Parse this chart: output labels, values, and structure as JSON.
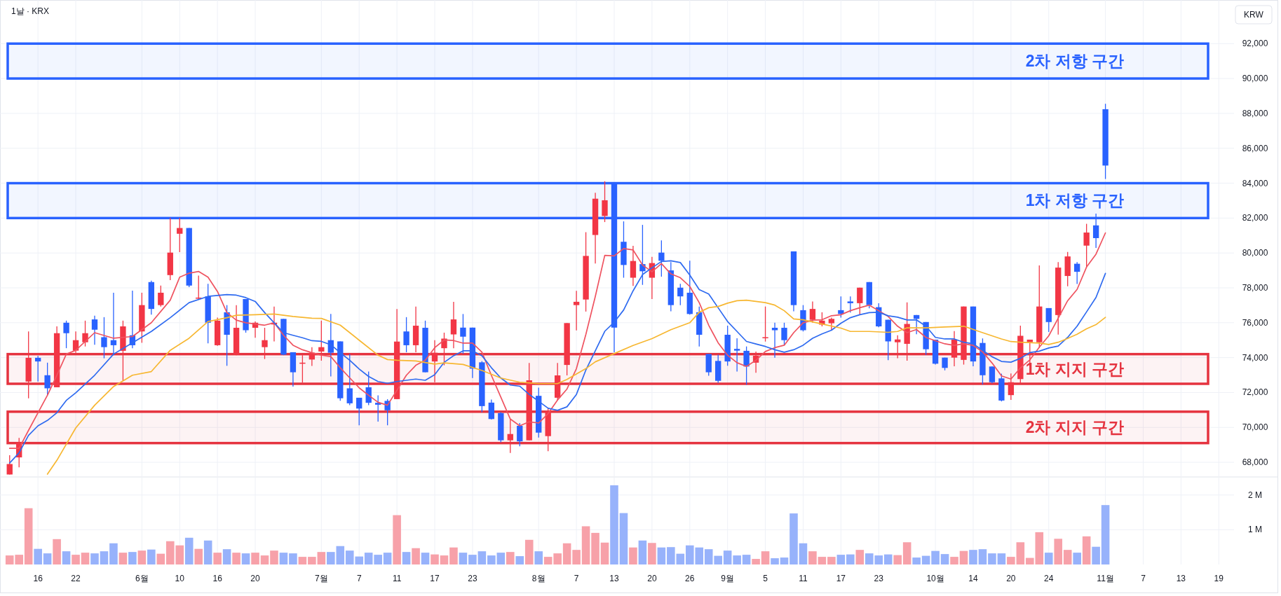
{
  "chart_data": [
    {
      "type": "candlestick",
      "title": "1날 · KRX",
      "ylabel": "KRW",
      "categories": [
        null,
        null,
        null,
        null,
        null,
        null,
        null,
        null,
        null,
        null,
        null,
        null,
        null,
        null,
        null,
        null,
        null,
        null,
        null,
        null,
        null,
        null,
        null,
        null,
        null,
        null,
        null,
        null,
        null,
        null,
        null,
        null,
        null,
        null,
        null,
        null,
        null,
        null,
        null,
        null,
        null,
        null,
        null,
        null,
        null,
        null,
        null,
        null,
        null,
        null,
        null,
        null,
        null,
        null,
        null,
        null,
        null,
        null,
        null,
        null,
        null,
        null,
        null,
        null,
        null,
        null,
        null,
        null,
        null,
        null,
        null,
        null,
        null,
        null,
        null,
        null,
        null,
        null,
        null,
        null,
        null,
        null,
        null,
        null,
        null,
        null,
        null,
        null,
        null,
        null,
        null,
        null,
        null,
        null,
        null,
        null,
        null,
        null,
        null,
        null,
        null,
        null,
        null,
        null,
        null,
        null,
        null,
        null,
        null,
        null,
        null,
        null,
        null,
        null,
        null,
        null,
        null,
        null,
        null,
        null,
        null,
        null,
        null,
        null,
        null,
        null,
        null,
        null,
        null
      ],
      "ohlc": [
        [
          67300,
          68400,
          67300,
          67900
        ],
        [
          68280,
          69400,
          67710,
          69110
        ],
        [
          72630,
          75500,
          71670,
          73990
        ],
        [
          73990,
          74100,
          72630,
          73780
        ],
        [
          72990,
          73710,
          71840,
          72240
        ],
        [
          72300,
          75790,
          72300,
          75400
        ],
        [
          76000,
          76120,
          74540,
          75400
        ],
        [
          74400,
          75500,
          74280,
          75000
        ],
        [
          74880,
          76120,
          74640,
          75400
        ],
        [
          76190,
          76400,
          74740,
          75600
        ],
        [
          75170,
          76320,
          73960,
          74600
        ],
        [
          75000,
          77720,
          74140,
          74710
        ],
        [
          74390,
          76120,
          72660,
          75790
        ],
        [
          75280,
          77840,
          74540,
          74710
        ],
        [
          75500,
          77720,
          74850,
          77010
        ],
        [
          78330,
          78410,
          76460,
          76790
        ],
        [
          77010,
          78130,
          76930,
          77720
        ],
        [
          78730,
          82000,
          78440,
          80020
        ],
        [
          81100,
          82000,
          80050,
          81430
        ],
        [
          81430,
          81430,
          78040,
          78130
        ],
        [
          77400,
          78700,
          77360,
          77440
        ],
        [
          77510,
          78230,
          74820,
          76000
        ],
        [
          74710,
          76290,
          74680,
          76120
        ],
        [
          76600,
          77010,
          73530,
          75310
        ],
        [
          74170,
          77010,
          74140,
          75710
        ],
        [
          77360,
          77360,
          75430,
          75570
        ],
        [
          75710,
          76070,
          75140,
          76000
        ],
        [
          74600,
          75710,
          73920,
          75000
        ],
        [
          75900,
          76930,
          74930,
          76000
        ],
        [
          76220,
          76220,
          74140,
          74170
        ],
        [
          74310,
          74310,
          72340,
          73160
        ],
        [
          73700,
          74140,
          72560,
          73710
        ],
        [
          73890,
          74600,
          73520,
          74280
        ],
        [
          74350,
          76120,
          73820,
          74600
        ],
        [
          75000,
          76500,
          72920,
          74280
        ],
        [
          74930,
          74930,
          71530,
          71670
        ],
        [
          72240,
          74210,
          71270,
          71380
        ],
        [
          71700,
          71700,
          70120,
          71080
        ],
        [
          72300,
          73200,
          71270,
          71410
        ],
        [
          71410,
          71840,
          70330,
          71300
        ],
        [
          71520,
          71620,
          70120,
          70980
        ],
        [
          71620,
          76790,
          71620,
          74920
        ],
        [
          75500,
          76320,
          74310,
          74710
        ],
        [
          74710,
          76930,
          74310,
          75830
        ],
        [
          75710,
          76120,
          73160,
          73160
        ],
        [
          73780,
          75000,
          72590,
          74280
        ],
        [
          74540,
          75430,
          73560,
          75090
        ],
        [
          75330,
          77200,
          74540,
          76190
        ],
        [
          75720,
          76500,
          74230,
          75200
        ],
        [
          75720,
          75720,
          72830,
          73370
        ],
        [
          73730,
          73800,
          70870,
          71220
        ],
        [
          71420,
          71600,
          70450,
          70480
        ],
        [
          70820,
          70870,
          69150,
          69260
        ],
        [
          69260,
          70480,
          68530,
          69620
        ],
        [
          70090,
          70250,
          68920,
          69200
        ],
        [
          69260,
          73690,
          69260,
          72700
        ],
        [
          71810,
          72280,
          69420,
          69700
        ],
        [
          69500,
          71110,
          68640,
          70920
        ],
        [
          71700,
          73690,
          71540,
          72980
        ],
        [
          73580,
          75980,
          72980,
          75980
        ],
        [
          77010,
          77830,
          75560,
          77200
        ],
        [
          77330,
          81190,
          76640,
          79830
        ],
        [
          81030,
          83450,
          79390,
          83110
        ],
        [
          82120,
          84110,
          81770,
          83020
        ],
        [
          83950,
          84050,
          74310,
          75720
        ],
        [
          80640,
          81810,
          78580,
          79310
        ],
        [
          78580,
          80410,
          78110,
          79540
        ],
        [
          79360,
          81610,
          78170,
          78950
        ],
        [
          78580,
          79780,
          77360,
          79420
        ],
        [
          80020,
          80720,
          78640,
          79550
        ],
        [
          79000,
          79470,
          76650,
          77010
        ],
        [
          78010,
          78230,
          77010,
          77510
        ],
        [
          77720,
          79560,
          76460,
          76500
        ],
        [
          76600,
          76930,
          74640,
          75310
        ],
        [
          74210,
          74210,
          72960,
          73160
        ],
        [
          73810,
          74170,
          72560,
          72670
        ],
        [
          75310,
          75830,
          73530,
          73780
        ],
        [
          74500,
          75110,
          73200,
          74400
        ],
        [
          74390,
          74640,
          72440,
          73490
        ],
        [
          73710,
          74350,
          73130,
          74110
        ],
        [
          75140,
          76930,
          74920,
          75170
        ],
        [
          75710,
          76000,
          73990,
          75570
        ],
        [
          75710,
          76000,
          74710,
          75000
        ],
        [
          80090,
          80090,
          76650,
          77010
        ],
        [
          76720,
          77010,
          75500,
          75570
        ],
        [
          76170,
          77220,
          76000,
          76790
        ],
        [
          75890,
          76600,
          75790,
          76120
        ],
        [
          75970,
          76290,
          75570,
          76220
        ],
        [
          76720,
          77510,
          76290,
          76500
        ],
        [
          77220,
          77510,
          76580,
          77120
        ],
        [
          77120,
          78010,
          76460,
          78010
        ],
        [
          78330,
          78330,
          76830,
          77010
        ],
        [
          76890,
          77120,
          75740,
          75790
        ],
        [
          76170,
          76170,
          73850,
          74930
        ],
        [
          74880,
          75280,
          73960,
          75040
        ],
        [
          74790,
          77170,
          73820,
          75930
        ],
        [
          76440,
          76440,
          75340,
          76220
        ],
        [
          76040,
          76040,
          74150,
          74480
        ],
        [
          75030,
          75030,
          73600,
          73650
        ],
        [
          74000,
          74000,
          73270,
          73410
        ],
        [
          74000,
          75520,
          73500,
          75030
        ],
        [
          73870,
          76930,
          73600,
          76930
        ],
        [
          76930,
          76930,
          73500,
          73780
        ],
        [
          74840,
          75100,
          72460,
          72990
        ],
        [
          73490,
          73490,
          72530,
          72590
        ],
        [
          72810,
          73080,
          71490,
          71540
        ],
        [
          71850,
          73090,
          71580,
          72590
        ],
        [
          72770,
          75830,
          72530,
          75250
        ],
        [
          74880,
          75030,
          73500,
          75030
        ],
        [
          74880,
          79280,
          74550,
          76930
        ],
        [
          76840,
          76840,
          75470,
          76040
        ],
        [
          76440,
          79470,
          75320,
          79160
        ],
        [
          78680,
          80060,
          78090,
          79800
        ],
        [
          79380,
          79470,
          78220,
          78920
        ],
        [
          80420,
          81670,
          79190,
          81170
        ],
        [
          81580,
          82260,
          80290,
          80850
        ],
        [
          88240,
          88550,
          84240,
          85010
        ],
        null,
        null,
        null,
        null,
        null,
        null,
        null,
        null,
        null,
        null,
        null,
        null
      ],
      "colors": [
        "#f23645",
        "#f23645",
        "#f23645",
        "#2962ff",
        "#2962ff",
        "#f23645",
        "#2962ff",
        "#f23645",
        "#f23645",
        "#2962ff",
        "#2962ff",
        "#2962ff",
        "#f23645",
        "#2962ff",
        "#f23645",
        "#2962ff",
        "#f23645",
        "#f23645",
        "#f23645",
        "#2962ff",
        "#f23645",
        "#2962ff",
        "#f23645",
        "#2962ff",
        "#f23645",
        "#2962ff",
        "#f23645",
        "#f23645",
        "#f23645",
        "#2962ff",
        "#2962ff",
        "#f23645",
        "#f23645",
        "#f23645",
        "#2962ff",
        "#2962ff",
        "#2962ff",
        "#2962ff",
        "#2962ff",
        "#2962ff",
        "#2962ff",
        "#f23645",
        "#2962ff",
        "#f23645",
        "#2962ff",
        "#f23645",
        "#f23645",
        "#f23645",
        "#2962ff",
        "#2962ff",
        "#2962ff",
        "#2962ff",
        "#2962ff",
        "#f23645",
        "#2962ff",
        "#f23645",
        "#2962ff",
        "#f23645",
        "#f23645",
        "#f23645",
        "#f23645",
        "#f23645",
        "#f23645",
        "#f23645",
        "#2962ff",
        "#2962ff",
        "#f23645",
        "#2962ff",
        "#f23645",
        "#2962ff",
        "#2962ff",
        "#2962ff",
        "#2962ff",
        "#2962ff",
        "#2962ff",
        "#2962ff",
        "#2962ff",
        "#2962ff",
        "#2962ff",
        "#f23645",
        "#f23645",
        "#2962ff",
        "#2962ff",
        "#2962ff",
        "#2962ff",
        "#f23645",
        "#f23645",
        "#f23645",
        "#2962ff",
        "#2962ff",
        "#f23645",
        "#2962ff",
        "#2962ff",
        "#2962ff",
        "#f23645",
        "#f23645",
        "#2962ff",
        "#2962ff",
        "#2962ff",
        "#2962ff",
        "#f23645",
        "#f23645",
        "#2962ff",
        "#2962ff",
        "#2962ff",
        "#2962ff",
        "#f23645",
        "#f23645",
        "#f23645",
        "#f23645",
        "#2962ff",
        "#f23645",
        "#f23645",
        "#2962ff",
        "#f23645",
        "#2962ff",
        "#2962ff",
        null,
        null,
        null,
        null,
        null,
        null,
        null,
        null,
        null,
        null,
        null,
        null
      ],
      "series": [
        {
          "type": "line",
          "color": "#ef5360",
          "values": [
            68800,
            68800,
            69830,
            70840,
            71840,
            72990,
            74200,
            74420,
            null,
            75430,
            null,
            75110,
            null,
            75210,
            null,
            76000,
            null,
            77290,
            78610,
            78840,
            78940,
            78610,
            77790,
            76580,
            76150,
            76000,
            75930,
            75860,
            76000,
            75280,
            74710,
            74450,
            74280,
            74140,
            74060,
            73420,
            72840,
            72270,
            71840,
            71440,
            71270,
            72130,
            72990,
            73560,
            73850,
            74570,
            75010,
            74980,
            74830,
            74830,
            74310,
            72980,
            71730,
            70480,
            70090,
            70320,
            70250,
            70790,
            71570,
            72200,
            73370,
            75330,
            77510,
            79860,
            79830,
            80250,
            80170,
            79310,
            78920,
            79390,
            78800,
            78580,
            78080,
            77150,
            75860,
            74850,
            74140,
            73710,
            73490,
            73850,
            74350,
            74570,
            74710,
            75430,
            76000,
            76150,
            76170,
            76400,
            76460,
            76690,
            76860,
            77010,
            76690,
            76360,
            75800,
            75430,
            75610,
            75160,
            74970,
            74790,
            74700,
            74790,
            74700,
            74330,
            73690,
            72950,
            72770,
            73410,
            73870,
            74600,
            75250,
            76260,
            77260,
            77910,
            79190,
            79930,
            81150,
            null,
            null,
            null,
            null,
            null,
            null,
            null,
            null,
            null,
            null,
            null,
            null
          ]
        },
        {
          "type": "line",
          "color": "#2f6bf0",
          "values": [
            67960,
            68540,
            69540,
            70090,
            70400,
            70840,
            71550,
            71980,
            null,
            72990,
            null,
            74200,
            null,
            74850,
            null,
            75500,
            null,
            76290,
            null,
            77150,
            null,
            77510,
            null,
            77610,
            77580,
            77440,
            77220,
            76580,
            76000,
            75430,
            75280,
            75140,
            74970,
            74930,
            74740,
            74280,
            73850,
            73350,
            72920,
            72630,
            72530,
            72630,
            72700,
            72770,
            72700,
            73020,
            73730,
            74110,
            74390,
            74390,
            74110,
            73420,
            72830,
            72430,
            72360,
            71890,
            71500,
            71100,
            70980,
            71180,
            71890,
            73290,
            74390,
            75510,
            76030,
            76730,
            77830,
            78760,
            79150,
            79510,
            79550,
            79450,
            78730,
            77900,
            77650,
            76860,
            76070,
            75500,
            74930,
            74780,
            74640,
            74450,
            74310,
            74450,
            74710,
            75110,
            75360,
            75570,
            75970,
            76290,
            76460,
            76580,
            76600,
            76400,
            76320,
            76160,
            76160,
            75800,
            75160,
            75070,
            75070,
            74880,
            74790,
            74420,
            74050,
            73780,
            73740,
            73960,
            74290,
            74370,
            74550,
            74660,
            75160,
            75800,
            76620,
            77450,
            78830,
            null,
            null,
            null,
            null,
            null,
            null,
            null,
            null,
            null,
            null,
            null,
            null
          ]
        },
        {
          "type": "line",
          "color": "#f7b731",
          "values": [
            null,
            null,
            null,
            null,
            67320,
            68110,
            null,
            69970,
            null,
            71270,
            null,
            72340,
            null,
            72990,
            null,
            73200,
            null,
            74420,
            null,
            75110,
            null,
            76070,
            null,
            76290,
            76430,
            null,
            76460,
            null,
            76500,
            null,
            76360,
            null,
            76260,
            76250,
            null,
            75860,
            null,
            75000,
            null,
            74140,
            73890,
            73850,
            null,
            73810,
            null,
            73630,
            73700,
            null,
            73610,
            null,
            73260,
            null,
            72830,
            null,
            72590,
            null,
            72510,
            null,
            72510,
            72750,
            73060,
            73370,
            73760,
            null,
            74230,
            null,
            74700,
            null,
            75090,
            null,
            75600,
            null,
            76000,
            76600,
            76860,
            76930,
            77120,
            77260,
            77290,
            null,
            77150,
            77010,
            76690,
            76220,
            76170,
            null,
            75930,
            null,
            75690,
            75500,
            null,
            75500,
            null,
            75450,
            75500,
            75710,
            null,
            75710,
            null,
            75760,
            null,
            75800,
            null,
            75430,
            75250,
            75070,
            74920,
            74880,
            null,
            74830,
            74750,
            74880,
            75100,
            75340,
            75650,
            75890,
            76310,
            null,
            null,
            null,
            null,
            null,
            null,
            null,
            null,
            null,
            null,
            null,
            null
          ]
        }
      ],
      "ylim": [
        67200,
        94500
      ],
      "yticks": [
        {
          "value": 68000,
          "label": "68,000"
        },
        {
          "value": 70000,
          "label": "70,000"
        },
        {
          "value": 72000,
          "label": "72,000"
        },
        {
          "value": 74000,
          "label": "74,000"
        },
        {
          "value": 76000,
          "label": "76,000"
        },
        {
          "value": 78000,
          "label": "78,000"
        },
        {
          "value": 80000,
          "label": "80,000"
        },
        {
          "value": 82000,
          "label": "82,000"
        },
        {
          "value": 84000,
          "label": "84,000"
        },
        {
          "value": 86000,
          "label": "86,000"
        },
        {
          "value": 88000,
          "label": "88,000"
        },
        {
          "value": 90000,
          "label": "90,000"
        },
        {
          "value": 92000,
          "label": "92,000"
        }
      ],
      "bands": [
        {
          "axis": "y",
          "from": 90000,
          "to": 92000,
          "label": "2차 저항 구간",
          "color": "#2962ff"
        },
        {
          "axis": "y",
          "from": 82000,
          "to": 84000,
          "label": "1차 저항 구간",
          "color": "#2962ff"
        },
        {
          "axis": "y",
          "from": 72500,
          "to": 74200,
          "label": "1차 지지 구간",
          "color": "#e5333f"
        },
        {
          "axis": "y",
          "from": 69100,
          "to": 70900,
          "label": "2차 지지 구간",
          "color": "#e5333f"
        }
      ],
      "grid": true,
      "tick_labels": "y"
    },
    {
      "type": "bar",
      "categories": [
        null,
        null,
        null,
        "16",
        null,
        null,
        null,
        "22",
        null,
        null,
        null,
        null,
        null,
        null,
        "6월",
        null,
        null,
        null,
        "10",
        null,
        null,
        null,
        "16",
        null,
        null,
        null,
        "20",
        null,
        null,
        null,
        null,
        null,
        null,
        "7월",
        null,
        null,
        null,
        "7",
        null,
        null,
        null,
        "11",
        null,
        null,
        null,
        "17",
        null,
        null,
        null,
        "23",
        null,
        null,
        null,
        null,
        null,
        null,
        "8월",
        null,
        null,
        null,
        "7",
        null,
        null,
        null,
        "13",
        null,
        null,
        null,
        "20",
        null,
        null,
        null,
        "26",
        null,
        null,
        null,
        "9월",
        null,
        null,
        null,
        "5",
        null,
        null,
        null,
        "11",
        null,
        null,
        null,
        "17",
        null,
        null,
        null,
        "23",
        null,
        null,
        null,
        null,
        null,
        "10월",
        null,
        null,
        null,
        "14",
        null,
        null,
        null,
        "20",
        null,
        null,
        null,
        "24",
        null,
        null,
        null,
        null,
        null,
        "11월",
        null,
        null,
        null,
        "7",
        null,
        null,
        null,
        "13",
        null,
        null,
        null,
        "19"
      ],
      "values": [
        0.26,
        0.28,
        1.62,
        0.45,
        0.32,
        0.73,
        0.38,
        0.28,
        0.34,
        0.32,
        0.38,
        0.61,
        0.34,
        0.36,
        0.4,
        0.43,
        0.31,
        0.67,
        0.55,
        0.77,
        0.45,
        0.69,
        0.34,
        0.44,
        0.34,
        0.32,
        0.34,
        0.26,
        0.4,
        0.34,
        0.32,
        0.22,
        0.22,
        0.36,
        0.36,
        0.53,
        0.4,
        0.23,
        0.34,
        0.28,
        0.34,
        1.42,
        0.36,
        0.47,
        0.34,
        0.29,
        0.26,
        0.49,
        0.34,
        0.28,
        0.38,
        0.26,
        0.34,
        0.36,
        0.24,
        0.71,
        0.38,
        0.22,
        0.32,
        0.61,
        0.42,
        1.1,
        0.91,
        0.63,
        2.28,
        1.48,
        0.49,
        0.69,
        0.62,
        0.49,
        0.5,
        0.31,
        0.55,
        0.49,
        0.44,
        0.25,
        0.4,
        0.26,
        0.28,
        0.16,
        0.38,
        0.18,
        0.2,
        1.47,
        0.61,
        0.38,
        0.22,
        0.22,
        0.28,
        0.29,
        0.42,
        0.32,
        0.26,
        0.29,
        0.27,
        0.64,
        0.2,
        0.25,
        0.39,
        0.3,
        0.22,
        0.39,
        0.42,
        0.44,
        0.32,
        0.32,
        0.22,
        0.64,
        0.19,
        0.93,
        0.34,
        0.74,
        0.42,
        0.34,
        0.81,
        0.51,
        1.71,
        null,
        null,
        null,
        null,
        null,
        null,
        null,
        null,
        null,
        null,
        null,
        null
      ],
      "colors": [
        "#f7a1a9",
        "#f7a1a9",
        "#f7a1a9",
        "#97b2fb",
        "#97b2fb",
        "#f7a1a9",
        "#97b2fb",
        "#f7a1a9",
        "#f7a1a9",
        "#97b2fb",
        "#97b2fb",
        "#97b2fb",
        "#f7a1a9",
        "#97b2fb",
        "#f7a1a9",
        "#97b2fb",
        "#f7a1a9",
        "#f7a1a9",
        "#f7a1a9",
        "#97b2fb",
        "#f7a1a9",
        "#97b2fb",
        "#f7a1a9",
        "#97b2fb",
        "#f7a1a9",
        "#97b2fb",
        "#f7a1a9",
        "#f7a1a9",
        "#f7a1a9",
        "#97b2fb",
        "#97b2fb",
        "#f7a1a9",
        "#f7a1a9",
        "#f7a1a9",
        "#97b2fb",
        "#97b2fb",
        "#97b2fb",
        "#97b2fb",
        "#97b2fb",
        "#97b2fb",
        "#97b2fb",
        "#f7a1a9",
        "#97b2fb",
        "#f7a1a9",
        "#97b2fb",
        "#f7a1a9",
        "#f7a1a9",
        "#f7a1a9",
        "#97b2fb",
        "#97b2fb",
        "#97b2fb",
        "#97b2fb",
        "#97b2fb",
        "#f7a1a9",
        "#97b2fb",
        "#f7a1a9",
        "#97b2fb",
        "#f7a1a9",
        "#f7a1a9",
        "#f7a1a9",
        "#f7a1a9",
        "#f7a1a9",
        "#f7a1a9",
        "#f7a1a9",
        "#97b2fb",
        "#97b2fb",
        "#f7a1a9",
        "#97b2fb",
        "#f7a1a9",
        "#97b2fb",
        "#97b2fb",
        "#97b2fb",
        "#97b2fb",
        "#97b2fb",
        "#97b2fb",
        "#97b2fb",
        "#97b2fb",
        "#97b2fb",
        "#97b2fb",
        "#f7a1a9",
        "#f7a1a9",
        "#97b2fb",
        "#97b2fb",
        "#97b2fb",
        "#97b2fb",
        "#f7a1a9",
        "#f7a1a9",
        "#f7a1a9",
        "#97b2fb",
        "#97b2fb",
        "#f7a1a9",
        "#97b2fb",
        "#97b2fb",
        "#97b2fb",
        "#f7a1a9",
        "#f7a1a9",
        "#97b2fb",
        "#97b2fb",
        "#97b2fb",
        "#97b2fb",
        "#f7a1a9",
        "#f7a1a9",
        "#97b2fb",
        "#97b2fb",
        "#97b2fb",
        "#97b2fb",
        "#f7a1a9",
        "#f7a1a9",
        "#f7a1a9",
        "#f7a1a9",
        "#97b2fb",
        "#f7a1a9",
        "#f7a1a9",
        "#97b2fb",
        "#f7a1a9",
        "#97b2fb",
        "#97b2fb",
        null,
        null,
        null,
        null,
        null,
        null,
        null,
        null,
        null,
        null,
        null,
        null
      ],
      "ylim": [
        0,
        2.5
      ],
      "yticks": [
        {
          "value": 1,
          "label": "1 M"
        },
        {
          "value": 2,
          "label": "2 M"
        }
      ],
      "grid": true
    }
  ]
}
